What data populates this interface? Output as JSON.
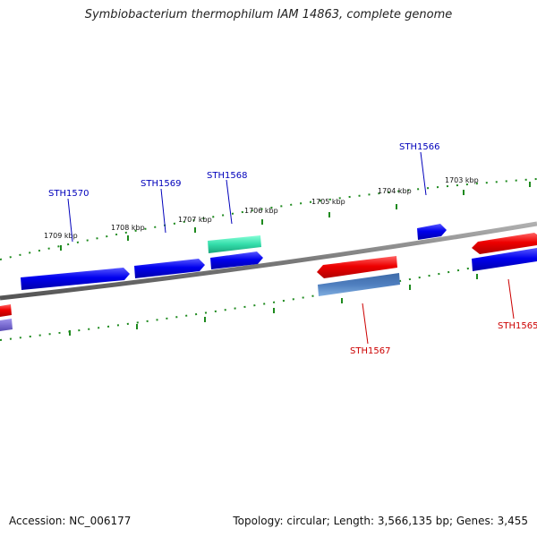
{
  "title": "Symbiobacterium thermophilum IAM 14863, complete genome",
  "footer": {
    "accession": "Accession: NC_006177",
    "summary": "Topology: circular; Length: 3,566,135 bp; Genes: 3,455"
  },
  "scale_labels": [
    "1709 kbp",
    "1708 kbp",
    "1707 kbp",
    "1706 kbp",
    "1705 kbp",
    "1704 kbp",
    "1703 kbp"
  ],
  "gene_labels": {
    "forward": [
      "STH1570",
      "STH1569",
      "STH1568",
      "STH1566"
    ],
    "reverse": [
      "STH1567",
      "STH1565"
    ]
  },
  "colors": {
    "forward_cds": "#0000ee",
    "reverse_cds": "#ee0000",
    "rna": "#33ddaa",
    "reverse_other": "#4f7fbf",
    "reverse_partial": "#7d6fd3",
    "backbone": "#808080",
    "ticks": "#1e8a1e",
    "forward_label": "#0000bb",
    "reverse_label": "#cc0000"
  }
}
